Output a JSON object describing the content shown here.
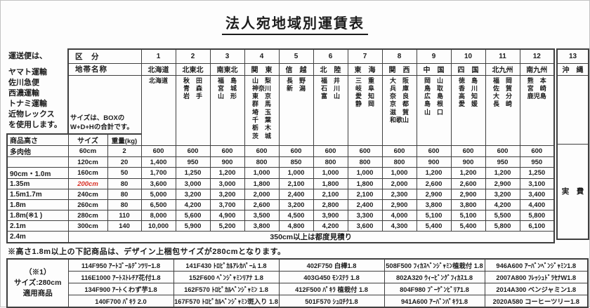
{
  "title": "法人宛地域別運賃表",
  "carrier_note": [
    "運送便は、",
    "ヤマト運輸",
    "佐川急便",
    "西濃運輸",
    "トナミ運輸",
    "近物レックス",
    "を使用します。"
  ],
  "colors": {
    "accent_red": "#d93025",
    "text": "#1c1c1c",
    "border": "#3f3f3f"
  },
  "table": {
    "kubun_label": "区　分",
    "zone_name_label": "地帯名称",
    "box_note_line1": "サイズは、BOXの",
    "box_note_line2": "W+D+Hの合計です。",
    "height_header": "商品高さ",
    "size_header": "サイズ",
    "weight_header": "重量(kg)",
    "zones": [
      {
        "no": "1",
        "name": "北海道",
        "prefs": [
          "北海道"
        ]
      },
      {
        "no": "2",
        "name": "北東北",
        "prefs": [
          "秋　田",
          "青　森",
          "岩　手"
        ]
      },
      {
        "no": "3",
        "name": "南東北",
        "prefs": [
          "福　島",
          "宮　城",
          "山　形"
        ]
      },
      {
        "no": "4",
        "name": "関　東",
        "prefs": [
          "山　梨",
          "神奈川",
          "東　京",
          "群　馬",
          "埼　玉",
          "千　葉",
          "栃　木",
          "茨　城"
        ]
      },
      {
        "no": "5",
        "name": "信　越",
        "prefs": [
          "長　野",
          "新　潟"
        ]
      },
      {
        "no": "6",
        "name": "北　陸",
        "prefs": [
          "福　井",
          "石　川",
          "富　山"
        ]
      },
      {
        "no": "7",
        "name": "東　海",
        "prefs": [
          "三　重",
          "岐　阜",
          "愛　知",
          "静　岡"
        ]
      },
      {
        "no": "8",
        "name": "関　西",
        "prefs": [
          "大　阪",
          "兵　庫",
          "奈　良",
          "京　都",
          "滋　賀",
          "和歌山"
        ]
      },
      {
        "no": "9",
        "name": "中　国",
        "prefs": [
          "岡　山",
          "鳥　取",
          "広　島",
          "島　根",
          "山　口"
        ]
      },
      {
        "no": "10",
        "name": "四　国",
        "prefs": [
          "徳　島",
          "香　川",
          "高　知",
          "愛　媛"
        ]
      },
      {
        "no": "11",
        "name": "北九州",
        "prefs": [
          "福　岡",
          "佐　賀",
          "大　分",
          "長　崎"
        ]
      },
      {
        "no": "12",
        "name": "南九州",
        "prefs": [
          "熊　本",
          "宮　崎",
          "鹿児島"
        ]
      }
    ],
    "zone13": {
      "no": "13",
      "name": "沖　縄",
      "fee": "実　費"
    },
    "rows": [
      {
        "label": "多肉他",
        "size": "60cm",
        "red": false,
        "weight": "2",
        "values": [
          "600",
          "600",
          "600",
          "600",
          "600",
          "600",
          "600",
          "600",
          "600",
          "600",
          "600",
          "600"
        ]
      },
      {
        "label": "",
        "size": "120cm",
        "red": false,
        "weight": "20",
        "values": [
          "1,400",
          "950",
          "900",
          "800",
          "850",
          "800",
          "800",
          "800",
          "900",
          "900",
          "950",
          "950"
        ]
      },
      {
        "label": "90cm・1.0m",
        "size": "160cm",
        "red": false,
        "weight": "50",
        "values": [
          "1,700",
          "1,250",
          "1,200",
          "1,000",
          "1,000",
          "1,000",
          "1,000",
          "1,000",
          "1,200",
          "1,200",
          "1,200",
          "1,250"
        ]
      },
      {
        "label": "1.35m",
        "size": "200cm",
        "red": true,
        "weight": "80",
        "values": [
          "3,600",
          "3,000",
          "3,000",
          "1,800",
          "2,100",
          "1,800",
          "1,800",
          "2,000",
          "2,600",
          "2,600",
          "2,900",
          "3,100"
        ]
      },
      {
        "label": "1.5m1.7m",
        "size": "240cm",
        "red": false,
        "weight": "80",
        "values": [
          "5,000",
          "3,200",
          "3,200",
          "2,000",
          "2,400",
          "2,100",
          "2,100",
          "2,300",
          "2,900",
          "2,900",
          "3,200",
          "3,400"
        ]
      },
      {
        "label": "1.8m",
        "size": "260cm",
        "red": false,
        "weight": "80",
        "values": [
          "6,500",
          "4,200",
          "3,700",
          "2,600",
          "3,200",
          "2,800",
          "2,400",
          "2,900",
          "3,800",
          "3,800",
          "4,200",
          "4,400"
        ]
      },
      {
        "label": "1.8m(※1 )",
        "size": "280cm",
        "red": false,
        "weight": "110",
        "values": [
          "8,000",
          "5,600",
          "4,900",
          "3,500",
          "4,500",
          "3,900",
          "3,300",
          "4,000",
          "5,100",
          "5,100",
          "5,500",
          "5,800"
        ]
      },
      {
        "label": "2.1m",
        "size": "300cm",
        "red": false,
        "weight": "140",
        "values": [
          "10,000",
          "5,900",
          "5,200",
          "3,800",
          "4,800",
          "4,200",
          "3,600",
          "4,300",
          "5,400",
          "5,400",
          "5,800",
          "6,100"
        ]
      }
    ],
    "estimate_label": "2.4m",
    "estimate_note": "350cm以上は都度見積り"
  },
  "bottom": {
    "note": "※高さ1.8m以上の下記商品は、デザイン上梱包サイズが280cmとなります。",
    "label": [
      "（※1）",
      "サイズ:280cm",
      "適用商品"
    ],
    "columns": [
      [
        "114F950 ｱｰﾄｺﾞｰﾙﾃﾞﾝﾂﾘｰ1.8",
        "116E1000 ｱｰﾄｽﾄﾚﾁｱ花付1.8",
        "134F900 ｱｰﾄくわず芋1.8",
        "140F700 ﾊﾟｷﾗ 2.0"
      ],
      [
        "141F430 ﾄﾛﾋﾟｶﾙｱﾚｶﾊﾟｰﾑ 1.8",
        "152F600 ﾍﾞﾝｼﾞｬﾐﾝﾘｱﾅ 1.8",
        "162F570 ﾄﾛﾋﾟｶﾙﾍﾞﾝｼﾞｬﾐﾝ 1.8",
        "167F570 ﾄﾛﾋﾟｶﾙﾍﾞﾝｼﾞｬﾐﾝ斑入り 1.8"
      ],
      [
        "402F750 白樺1.8",
        "403G450 ﾓﾝｽﾃﾗ 1.8",
        "412F500 ﾊﾟｷﾗ 植栽付 1.8",
        "501F570 ｼｭﾛﾁｸ1.8"
      ],
      [
        "508F500 ﾌｨｶｽﾍﾞﾝｼﾞｬﾐﾝ植栽付 1.8",
        "802A320 ｳｨｰﾋﾞﾝｸﾞﾌｨｶｽ1.8",
        "804F980 ﾌﾞｰｹﾞﾝﾋﾞﾘｱ1.8",
        "941A600 ｱｰﾊﾞﾝﾊﾟｷﾗ1.8"
      ],
      [
        "946A600 ｱｰﾊﾞﾝﾍﾞﾝｼﾞｬﾐﾝ1.8",
        "2007A800 ﾌﾚｯｼｭﾄﾞﾗｾﾅW1.8",
        "2014A300 ベンジャミン1.8",
        "2020A580 コーヒーツリー1.8"
      ]
    ]
  }
}
